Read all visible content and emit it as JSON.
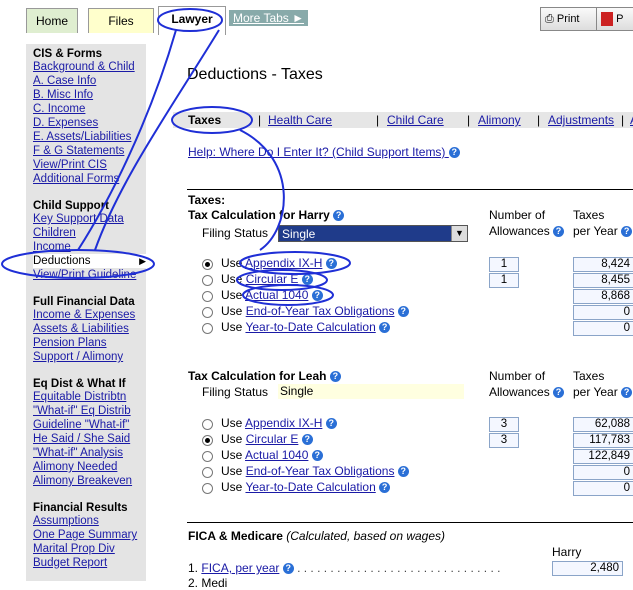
{
  "tabs": {
    "home": "Home",
    "files": "Files",
    "lawyer": "Lawyer",
    "more": "More Tabs ►"
  },
  "toolbar": {
    "print": "Print",
    "pdf": "P"
  },
  "sidebar": {
    "sections": [
      {
        "title": "CIS & Forms",
        "items": [
          "Background & Child",
          "A. Case Info",
          "B. Misc Info",
          "C. Income",
          "D. Expenses",
          "E. Assets/Liabilities",
          "F & G Statements",
          "View/Print CIS",
          "Additional Forms"
        ]
      },
      {
        "title": "Child Support",
        "items": [
          "Key Support Data",
          "Children",
          "Income",
          "Deductions",
          "View/Print Guideline"
        ]
      },
      {
        "title": "Full Financial Data",
        "items": [
          "Income & Expenses",
          "Assets & Liabilities",
          "Pension Plans",
          "Support / Alimony"
        ]
      },
      {
        "title": "Eq Dist & What If",
        "items": [
          "Equitable Distribtn",
          "\"What-if\" Eq Distrib",
          "Guideline \"What-if\"",
          "He Said / She Said",
          "\"What-if\" Analysis",
          "Alimony Needed",
          "Alimony Breakeven"
        ]
      },
      {
        "title": "Financial Results",
        "items": [
          "Assumptions",
          "One Page Summary",
          "Marital Prop Div",
          "Budget Report"
        ]
      }
    ],
    "selected": "Deductions"
  },
  "page": {
    "title": "Deductions - Taxes"
  },
  "subtabs": [
    "Taxes",
    "Health Care",
    "Child Care",
    "Alimony",
    "Adjustments",
    "A"
  ],
  "help_link": "Help: Where Do I Enter It? (Child Support Items)",
  "taxes_heading": "Taxes:",
  "harry": {
    "heading": "Tax Calculation for Harry",
    "filing_label": "Filing Status",
    "filing_value": "Single",
    "col_allow": [
      "Number of",
      "Allowances"
    ],
    "col_taxes": [
      "Taxes",
      "per Year"
    ],
    "rows": [
      {
        "use": "Use",
        "link": "Appendix IX-H",
        "allow": "1",
        "tax": "8,424",
        "selected": true
      },
      {
        "use": "Use",
        "link": "Circular E",
        "allow": "1",
        "tax": "8,455",
        "selected": false
      },
      {
        "use": "Use",
        "link": "Actual 1040",
        "allow": "",
        "tax": "8,868",
        "selected": false
      },
      {
        "use": "Use",
        "link": "End-of-Year Tax Obligations",
        "allow": "",
        "tax": "0",
        "selected": false
      },
      {
        "use": "Use",
        "link": "Year-to-Date Calculation",
        "allow": "",
        "tax": "0",
        "selected": false
      }
    ]
  },
  "leah": {
    "heading": "Tax Calculation for Leah",
    "filing_label": "Filing Status",
    "filing_value": "Single",
    "col_allow": [
      "Number of",
      "Allowances"
    ],
    "col_taxes": [
      "Taxes",
      "per Year"
    ],
    "rows": [
      {
        "use": "Use",
        "link": "Appendix IX-H",
        "allow": "3",
        "tax": "62,088",
        "selected": false
      },
      {
        "use": "Use",
        "link": "Circular E",
        "allow": "3",
        "tax": "117,783",
        "selected": true
      },
      {
        "use": "Use",
        "link": "Actual 1040",
        "allow": "",
        "tax": "122,849",
        "selected": false
      },
      {
        "use": "Use",
        "link": "End-of-Year Tax Obligations",
        "allow": "",
        "tax": "0",
        "selected": false
      },
      {
        "use": "Use",
        "link": "Year-to-Date Calculation",
        "allow": "",
        "tax": "0",
        "selected": false
      }
    ]
  },
  "fica": {
    "heading": "FICA & Medicare",
    "note": "(Calculated, based on wages)",
    "col_harry": "Harry",
    "row1_num": "1.",
    "row1_link": "FICA, per year",
    "row1_value": "2,480",
    "row2_partial": "2. Medi"
  },
  "colors": {
    "sidebar_bg": "#e4e4e4",
    "link": "#1a1aa6",
    "ink": "#1f2fd6",
    "select_bg": "#1f3b8a"
  }
}
